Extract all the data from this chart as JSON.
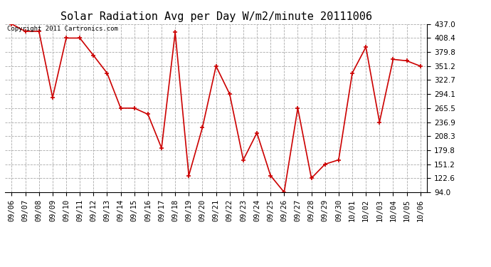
{
  "title": "Solar Radiation Avg per Day W/m2/minute 20111006",
  "copyright_text": "Copyright 2011 Cartronics.com",
  "x_labels": [
    "09/06",
    "09/07",
    "09/08",
    "09/09",
    "09/10",
    "09/11",
    "09/12",
    "09/13",
    "09/14",
    "09/15",
    "09/16",
    "09/17",
    "09/18",
    "09/19",
    "09/20",
    "09/21",
    "09/22",
    "09/23",
    "09/24",
    "09/25",
    "09/26",
    "09/27",
    "09/28",
    "09/29",
    "09/30",
    "10/01",
    "10/02",
    "10/03",
    "10/04",
    "10/05",
    "10/06"
  ],
  "y_values": [
    437.0,
    422.0,
    422.0,
    287.0,
    408.4,
    408.4,
    373.0,
    337.0,
    265.5,
    265.5,
    253.0,
    184.0,
    420.0,
    128.0,
    226.0,
    351.2,
    294.1,
    160.0,
    215.0,
    128.0,
    94.0,
    265.5,
    122.6,
    151.2,
    160.0,
    337.0,
    390.0,
    236.9,
    365.0,
    362.0,
    351.2
  ],
  "line_color": "#cc0000",
  "marker_color": "#cc0000",
  "bg_color": "#ffffff",
  "grid_color": "#aaaaaa",
  "y_min": 94.0,
  "y_max": 437.0,
  "y_ticks": [
    94.0,
    122.6,
    151.2,
    179.8,
    208.3,
    236.9,
    265.5,
    294.1,
    322.7,
    351.2,
    379.8,
    408.4,
    437.0
  ],
  "title_fontsize": 11,
  "copyright_fontsize": 6.5,
  "tick_fontsize": 7.5
}
